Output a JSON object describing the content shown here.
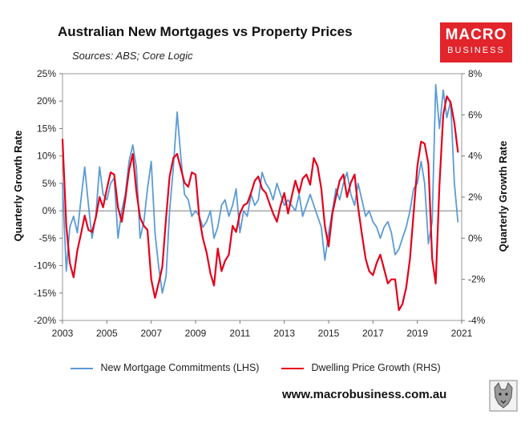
{
  "header": {
    "title": "Australian New Mortgages vs Property Prices",
    "subtitle": "Sources: ABS; Core Logic"
  },
  "logo": {
    "line1": "MACRO",
    "line2": "BUSINESS",
    "color": "#e2242b"
  },
  "footer": {
    "website": "www.macrobusiness.com.au"
  },
  "chart_data": {
    "type": "line",
    "ylabel_left": "Quarterly  Growth Rate",
    "ylabel_right": "Quarterly Growth Rate",
    "x_ticks": [
      "2003",
      "2005",
      "2007",
      "2009",
      "2011",
      "2013",
      "2015",
      "2017",
      "2019",
      "2021"
    ],
    "xlim": [
      2003,
      2021
    ],
    "ylim_left": [
      -20,
      25
    ],
    "ylim_right": [
      -4,
      8
    ],
    "left_ticks": [
      "25%",
      "20%",
      "15%",
      "10%",
      "5%",
      "0%",
      "-5%",
      "-10%",
      "-15%",
      "-20%"
    ],
    "right_ticks": [
      "8%",
      "6%",
      "4%",
      "2%",
      "0%",
      "-2%",
      "-4%"
    ],
    "grid": false,
    "zero_line": true,
    "legend_position": "bottom",
    "series": [
      {
        "name": "New Mortgage Commitments (LHS)",
        "axis": "left",
        "color": "#5b9bd5",
        "x": [
          2003.0,
          2003.17,
          2003.33,
          2003.5,
          2003.67,
          2003.83,
          2004.0,
          2004.17,
          2004.33,
          2004.5,
          2004.67,
          2004.83,
          2005.0,
          2005.17,
          2005.33,
          2005.5,
          2005.67,
          2005.83,
          2006.0,
          2006.17,
          2006.33,
          2006.5,
          2006.67,
          2006.83,
          2007.0,
          2007.17,
          2007.33,
          2007.5,
          2007.67,
          2007.83,
          2008.0,
          2008.17,
          2008.33,
          2008.5,
          2008.67,
          2008.83,
          2009.0,
          2009.17,
          2009.33,
          2009.5,
          2009.67,
          2009.83,
          2010.0,
          2010.17,
          2010.33,
          2010.5,
          2010.67,
          2010.83,
          2011.0,
          2011.17,
          2011.33,
          2011.5,
          2011.67,
          2011.83,
          2012.0,
          2012.17,
          2012.33,
          2012.5,
          2012.67,
          2012.83,
          2013.0,
          2013.17,
          2013.33,
          2013.5,
          2013.67,
          2013.83,
          2014.0,
          2014.17,
          2014.33,
          2014.5,
          2014.67,
          2014.83,
          2015.0,
          2015.17,
          2015.33,
          2015.5,
          2015.67,
          2015.83,
          2016.0,
          2016.17,
          2016.33,
          2016.5,
          2016.67,
          2016.83,
          2017.0,
          2017.17,
          2017.33,
          2017.5,
          2017.67,
          2017.83,
          2018.0,
          2018.17,
          2018.33,
          2018.5,
          2018.67,
          2018.83,
          2019.0,
          2019.17,
          2019.33,
          2019.5,
          2019.67,
          2019.83,
          2020.0,
          2020.17,
          2020.33,
          2020.5,
          2020.67,
          2020.83
        ],
        "values": [
          5,
          -11,
          -3,
          -1,
          -4,
          2,
          8,
          1,
          -5,
          -1,
          8,
          3,
          2,
          5,
          6,
          -5,
          0,
          3,
          9,
          12,
          8,
          -5,
          -2,
          4,
          9,
          -4,
          -10,
          -15,
          -12,
          0,
          8,
          18,
          10,
          3,
          2,
          -1,
          0,
          -1,
          -3,
          -2,
          0,
          -5,
          -3,
          1,
          2,
          -1,
          1,
          4,
          -4,
          0,
          -1,
          3,
          1,
          2,
          7,
          5,
          4,
          2,
          5,
          3,
          1,
          2,
          1,
          0,
          3,
          -1,
          1,
          3,
          1,
          -1,
          -3,
          -9,
          -4,
          0,
          4,
          2,
          5,
          7,
          3,
          1,
          5,
          2,
          -1,
          0,
          -2,
          -3,
          -5,
          -3,
          -2,
          -4,
          -8,
          -7,
          -5,
          -3,
          0,
          4,
          5,
          9,
          5,
          -6,
          -2,
          23,
          15,
          22,
          17,
          20,
          5,
          -2
        ]
      },
      {
        "name": "Dwelling Price Growth (RHS)",
        "axis": "right",
        "color": "#e3001b",
        "x": [
          2003.0,
          2003.17,
          2003.33,
          2003.5,
          2003.67,
          2003.83,
          2004.0,
          2004.17,
          2004.33,
          2004.5,
          2004.67,
          2004.83,
          2005.0,
          2005.17,
          2005.33,
          2005.5,
          2005.67,
          2005.83,
          2006.0,
          2006.17,
          2006.33,
          2006.5,
          2006.67,
          2006.83,
          2007.0,
          2007.17,
          2007.33,
          2007.5,
          2007.67,
          2007.83,
          2008.0,
          2008.17,
          2008.33,
          2008.5,
          2008.67,
          2008.83,
          2009.0,
          2009.17,
          2009.33,
          2009.5,
          2009.67,
          2009.83,
          2010.0,
          2010.17,
          2010.33,
          2010.5,
          2010.67,
          2010.83,
          2011.0,
          2011.17,
          2011.33,
          2011.5,
          2011.67,
          2011.83,
          2012.0,
          2012.17,
          2012.33,
          2012.5,
          2012.67,
          2012.83,
          2013.0,
          2013.17,
          2013.33,
          2013.5,
          2013.67,
          2013.83,
          2014.0,
          2014.17,
          2014.33,
          2014.5,
          2014.67,
          2014.83,
          2015.0,
          2015.17,
          2015.33,
          2015.5,
          2015.67,
          2015.83,
          2016.0,
          2016.17,
          2016.33,
          2016.5,
          2016.67,
          2016.83,
          2017.0,
          2017.17,
          2017.33,
          2017.5,
          2017.67,
          2017.83,
          2018.0,
          2018.17,
          2018.33,
          2018.5,
          2018.67,
          2018.83,
          2019.0,
          2019.17,
          2019.33,
          2019.5,
          2019.67,
          2019.83,
          2020.0,
          2020.17,
          2020.33,
          2020.5,
          2020.67,
          2020.83
        ],
        "values": [
          4.8,
          0.6,
          -1.2,
          -1.9,
          -0.6,
          0.2,
          1.1,
          0.4,
          0.3,
          1.0,
          2.0,
          1.5,
          2.4,
          3.2,
          3.1,
          1.5,
          0.8,
          1.9,
          3.3,
          4.1,
          2.3,
          1.0,
          0.6,
          0.4,
          -2.0,
          -2.9,
          -2.2,
          -1.4,
          1.0,
          3.0,
          3.9,
          4.1,
          3.4,
          2.7,
          2.5,
          3.2,
          3.1,
          1.0,
          0.0,
          -0.7,
          -1.7,
          -2.3,
          -0.5,
          -1.6,
          -1.1,
          -0.8,
          0.6,
          0.3,
          1.2,
          1.6,
          1.7,
          2.2,
          2.8,
          3.0,
          2.4,
          2.2,
          1.7,
          1.2,
          0.8,
          1.6,
          2.2,
          1.2,
          2.0,
          2.8,
          2.2,
          2.9,
          3.1,
          2.6,
          3.9,
          3.5,
          2.4,
          0.6,
          -0.4,
          1.2,
          2.0,
          2.8,
          3.1,
          2.0,
          2.7,
          3.1,
          1.5,
          0.2,
          -1.0,
          -1.6,
          -1.8,
          -1.2,
          -0.8,
          -1.5,
          -2.2,
          -2.0,
          -2.0,
          -3.5,
          -3.2,
          -2.4,
          -1.0,
          1.2,
          3.5,
          4.7,
          4.6,
          3.6,
          -1.0,
          -2.2,
          2.6,
          6.0,
          6.9,
          6.6,
          5.6,
          4.2
        ]
      }
    ]
  }
}
